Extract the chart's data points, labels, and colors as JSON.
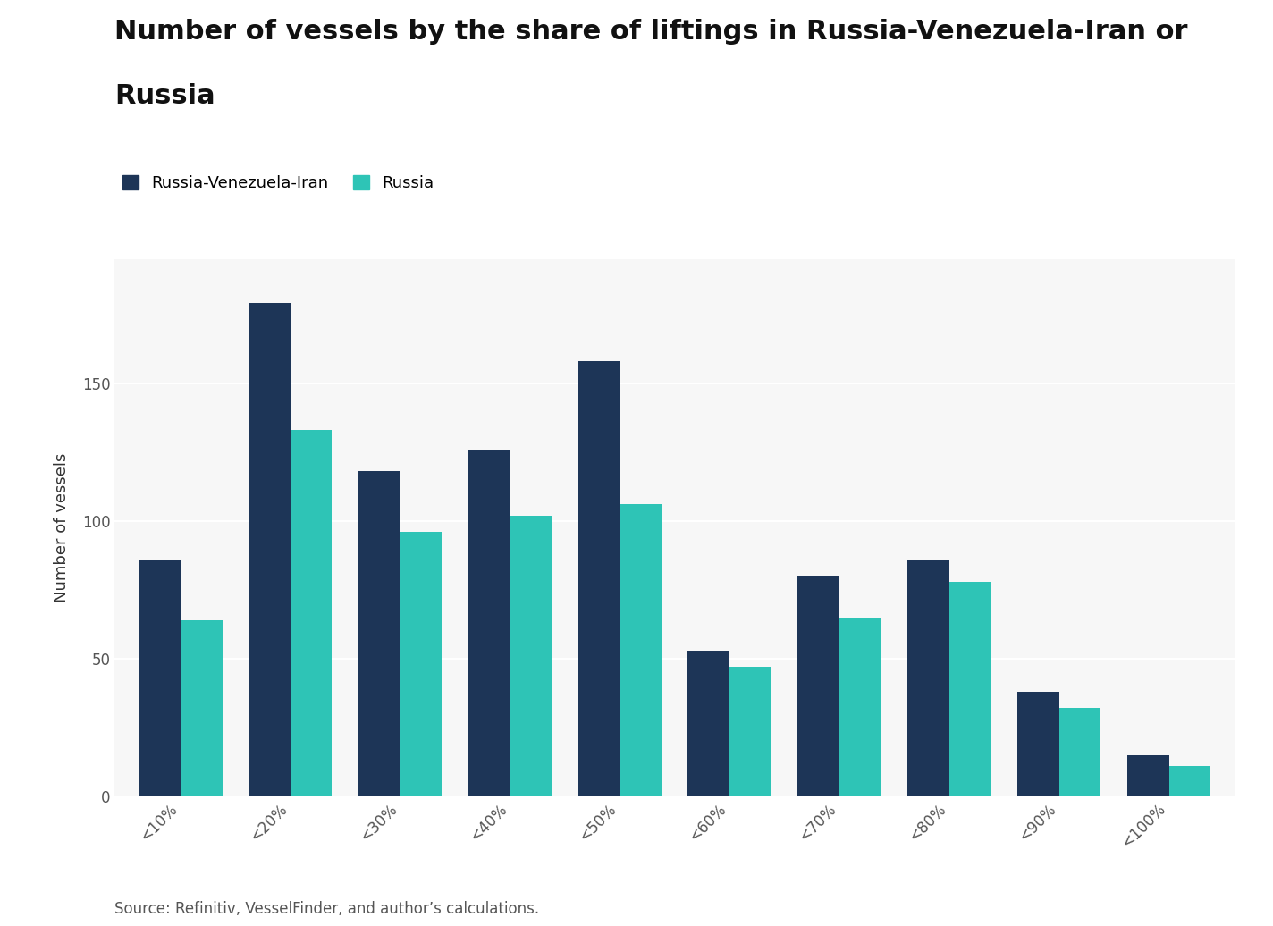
{
  "title_line1": "Number of vessels by the share of liftings in Russia-Venezuela-Iran or",
  "title_line2": "Russia",
  "ylabel": "Number of vessels",
  "categories": [
    "<10%",
    "<20%",
    "<30%",
    "<40%",
    "<50%",
    "<60%",
    "<70%",
    "<80%",
    "<90%",
    "<100%"
  ],
  "rvi_values": [
    86,
    179,
    118,
    126,
    158,
    53,
    80,
    86,
    38,
    15
  ],
  "russia_values": [
    64,
    133,
    96,
    102,
    106,
    47,
    65,
    78,
    32,
    11
  ],
  "rvi_color": "#1d3557",
  "russia_color": "#2ec4b6",
  "legend_labels": [
    "Russia-Venezuela-Iran",
    "Russia"
  ],
  "yticks": [
    0,
    50,
    100,
    150
  ],
  "ylim": [
    0,
    195
  ],
  "background_color": "#ffffff",
  "plot_bg_color": "#f7f7f7",
  "grid_color": "#ffffff",
  "source_text": "Source: Refinitiv, VesselFinder, and author’s calculations.",
  "title_fontsize": 22,
  "axis_label_fontsize": 13,
  "tick_fontsize": 12,
  "legend_fontsize": 13,
  "source_fontsize": 12,
  "bar_width": 0.38,
  "xtick_rotation": 45
}
